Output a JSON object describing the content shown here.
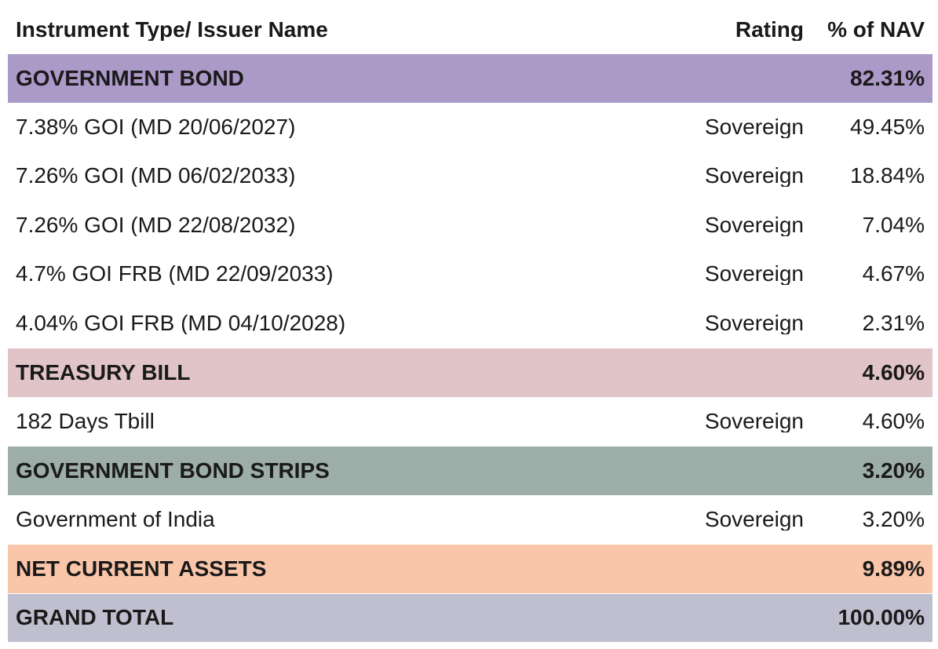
{
  "header": {
    "name": "Instrument Type/ Issuer Name",
    "rating": "Rating",
    "nav": "% of NAV"
  },
  "rows": [
    {
      "kind": "section",
      "name": "GOVERNMENT BOND",
      "rating": "",
      "nav": "82.31%",
      "color": "#ab99c8"
    },
    {
      "kind": "item",
      "name": "7.38% GOI (MD 20/06/2027)",
      "rating": "Sovereign",
      "nav": "49.45%"
    },
    {
      "kind": "item",
      "name": "7.26% GOI (MD 06/02/2033)",
      "rating": "Sovereign",
      "nav": "18.84%"
    },
    {
      "kind": "item",
      "name": "7.26% GOI (MD 22/08/2032)",
      "rating": "Sovereign",
      "nav": "7.04%"
    },
    {
      "kind": "item",
      "name": "4.7% GOI FRB (MD 22/09/2033)",
      "rating": "Sovereign",
      "nav": "4.67%"
    },
    {
      "kind": "item",
      "name": "4.04% GOI FRB (MD 04/10/2028)",
      "rating": "Sovereign",
      "nav": "2.31%"
    },
    {
      "kind": "section",
      "name": "TREASURY BILL",
      "rating": "",
      "nav": "4.60%",
      "color": "#e0c4c8"
    },
    {
      "kind": "item",
      "name": "182 Days Tbill",
      "rating": "Sovereign",
      "nav": "4.60%"
    },
    {
      "kind": "section",
      "name": "GOVERNMENT BOND STRIPS",
      "rating": "",
      "nav": "3.20%",
      "color": "#9dada8"
    },
    {
      "kind": "item",
      "name": "Government of India",
      "rating": "Sovereign",
      "nav": "3.20%"
    },
    {
      "kind": "section",
      "name": "NET CURRENT ASSETS",
      "rating": "",
      "nav": "9.89%",
      "color": "#fac6aa"
    },
    {
      "kind": "section",
      "name": "GRAND TOTAL",
      "rating": "",
      "nav": "100.00%",
      "color": "#c0bfcf"
    }
  ]
}
